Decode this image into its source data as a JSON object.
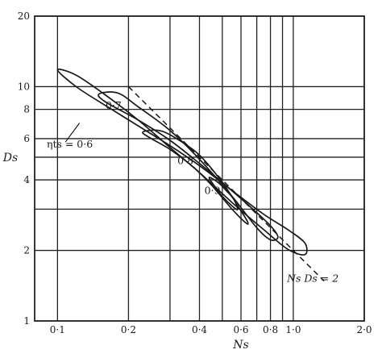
{
  "chart_data": {
    "type": "line",
    "title": "",
    "xlabel": "Ns",
    "ylabel": "Ds",
    "x_scale": "log",
    "y_scale": "log",
    "xlim": [
      0.08,
      2.0
    ],
    "ylim": [
      1,
      20
    ],
    "grid": true,
    "x_ticks": [
      {
        "value": 0.1,
        "label": "0·1"
      },
      {
        "value": 0.2,
        "label": "0·2"
      },
      {
        "value": 0.4,
        "label": "0·4"
      },
      {
        "value": 0.6,
        "label": "0·6"
      },
      {
        "value": 0.8,
        "label": "0·8"
      },
      {
        "value": 1.0,
        "label": "1·0"
      },
      {
        "value": 2.0,
        "label": "2·0"
      }
    ],
    "x_gridlines": [
      0.1,
      0.2,
      0.3,
      0.4,
      0.5,
      0.6,
      0.7,
      0.8,
      0.9,
      1.0,
      2.0
    ],
    "y_ticks": [
      {
        "value": 1,
        "label": "1"
      },
      {
        "value": 2,
        "label": "2"
      },
      {
        "value": 4,
        "label": "4"
      },
      {
        "value": 6,
        "label": "6"
      },
      {
        "value": 8,
        "label": "8"
      },
      {
        "value": 10,
        "label": "10"
      },
      {
        "value": 20,
        "label": "20"
      }
    ],
    "y_gridlines": [
      1,
      2,
      3,
      4,
      5,
      6,
      8,
      10,
      20
    ],
    "contours": [
      {
        "id": "eta-0-6",
        "label": "0·6",
        "level": 0.6,
        "points": [
          [
            0.1,
            11.8
          ],
          [
            0.12,
            11.2
          ],
          [
            0.16,
            9.2
          ],
          [
            0.22,
            7.2
          ],
          [
            0.3,
            5.5
          ],
          [
            0.4,
            4.3
          ],
          [
            0.55,
            3.2
          ],
          [
            0.75,
            2.45
          ],
          [
            0.95,
            2.02
          ],
          [
            1.12,
            1.92
          ],
          [
            1.12,
            2.15
          ],
          [
            0.95,
            2.45
          ],
          [
            0.75,
            2.85
          ],
          [
            0.55,
            3.6
          ],
          [
            0.4,
            4.6
          ],
          [
            0.3,
            5.6
          ],
          [
            0.22,
            6.8
          ],
          [
            0.16,
            8.3
          ],
          [
            0.12,
            10.0
          ],
          [
            0.1,
            11.8
          ]
        ]
      },
      {
        "id": "eta-0-7",
        "label": "0·7",
        "level": 0.7,
        "points": [
          [
            0.15,
            9.3
          ],
          [
            0.18,
            9.4
          ],
          [
            0.22,
            8.2
          ],
          [
            0.3,
            6.5
          ],
          [
            0.4,
            4.9
          ],
          [
            0.55,
            3.4
          ],
          [
            0.7,
            2.5
          ],
          [
            0.8,
            2.22
          ],
          [
            0.86,
            2.28
          ],
          [
            0.8,
            2.55
          ],
          [
            0.65,
            3.1
          ],
          [
            0.5,
            3.9
          ],
          [
            0.4,
            4.7
          ],
          [
            0.3,
            5.9
          ],
          [
            0.22,
            7.2
          ],
          [
            0.16,
            8.6
          ],
          [
            0.15,
            9.3
          ]
        ]
      },
      {
        "id": "eta-0-8",
        "label": "0·8",
        "level": 0.8,
        "points": [
          [
            0.23,
            6.4
          ],
          [
            0.27,
            6.5
          ],
          [
            0.32,
            6.0
          ],
          [
            0.4,
            5.1
          ],
          [
            0.5,
            3.9
          ],
          [
            0.6,
            2.95
          ],
          [
            0.64,
            2.65
          ],
          [
            0.63,
            2.62
          ],
          [
            0.55,
            3.0
          ],
          [
            0.45,
            3.8
          ],
          [
            0.38,
            4.5
          ],
          [
            0.3,
            5.4
          ],
          [
            0.25,
            6.0
          ],
          [
            0.23,
            6.4
          ]
        ]
      },
      {
        "id": "eta-0-9",
        "label": "0·9",
        "level": 0.9,
        "points": [
          [
            0.44,
            4.1
          ],
          [
            0.48,
            3.9
          ],
          [
            0.52,
            3.6
          ],
          [
            0.56,
            3.3
          ],
          [
            0.58,
            3.0
          ],
          [
            0.56,
            3.05
          ],
          [
            0.5,
            3.4
          ],
          [
            0.46,
            3.8
          ],
          [
            0.44,
            4.1
          ]
        ]
      }
    ],
    "reference_line": {
      "label": "Ns Ds = 2",
      "equation": "Ns*Ds=2",
      "x_range": [
        0.2,
        1.35
      ],
      "style": "dashed"
    },
    "annotations": [
      {
        "text": "ηts = 0·6",
        "at": [
          0.09,
          5.5
        ]
      },
      {
        "text": "0·7",
        "at": [
          0.165,
          8.3
        ]
      },
      {
        "text": "0·8",
        "at": [
          0.36,
          4.9
        ]
      },
      {
        "text": "0·9",
        "at": [
          0.44,
          3.6
        ]
      },
      {
        "text": "Ns Ds = 2",
        "at": [
          0.94,
          1.47
        ]
      }
    ]
  }
}
